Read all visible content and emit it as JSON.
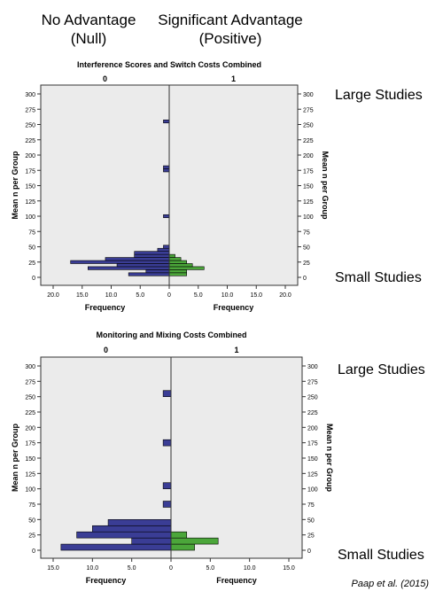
{
  "headers": {
    "null_line1": "No Advantage",
    "null_line2": "(Null)",
    "pos_line1": "Significant Advantage",
    "pos_line2": "(Positive)"
  },
  "side_labels": {
    "large": "Large Studies",
    "small": "Small Studies"
  },
  "citation": "Paap et al. (2015)",
  "colors": {
    "null_bar": "#3a3d95",
    "positive_bar": "#4ba63a",
    "plot_bg": "#ebebeb",
    "bar_outline": "#000000"
  },
  "chart_data": [
    {
      "type": "bar",
      "orientation": "horizontal-back-to-back",
      "title": "Interference Scores and Switch Costs Combined",
      "panel_labels": [
        "0",
        "1"
      ],
      "ylabel": "Mean n per Group",
      "xlabel": "Frequency",
      "ylim": [
        0,
        300
      ],
      "y_ticks": [
        "0",
        "25",
        "50",
        "75",
        "100",
        "125",
        "150",
        "175",
        "200",
        "225",
        "250",
        "275",
        "300"
      ],
      "x_max": 20,
      "x_ticks_left": [
        "20.0",
        "15.0",
        "10.0",
        "5.0",
        "0"
      ],
      "x_ticks_right": [
        "0",
        "5.0",
        "10.0",
        "15.0",
        "20.0"
      ],
      "bin_width": 5,
      "bins": [
        5,
        10,
        15,
        20,
        25,
        30,
        35,
        40,
        45,
        50,
        55,
        60,
        100,
        175,
        180,
        255
      ],
      "series": [
        {
          "values": [
            7,
            4,
            14,
            9,
            17,
            11,
            6,
            6,
            2,
            1,
            0,
            0,
            1,
            1,
            1,
            1
          ]
        },
        {
          "values": [
            3,
            3,
            6,
            4,
            3,
            2,
            1,
            0,
            0,
            0,
            0,
            0,
            0,
            0,
            0,
            0
          ]
        }
      ]
    },
    {
      "type": "bar",
      "orientation": "horizontal-back-to-back",
      "title": "Monitoring and Mixing Costs Combined",
      "panel_labels": [
        "0",
        "1"
      ],
      "ylabel": "Mean n per Group",
      "xlabel": "Frequency",
      "ylim": [
        0,
        300
      ],
      "y_ticks": [
        "0",
        "25",
        "50",
        "75",
        "100",
        "125",
        "150",
        "175",
        "200",
        "225",
        "250",
        "275",
        "300"
      ],
      "x_max": 15,
      "x_ticks_left": [
        "15.0",
        "10.0",
        "5.0",
        "0"
      ],
      "x_ticks_right": [
        "0",
        "5.0",
        "10.0",
        "15.0"
      ],
      "bin_width": 10,
      "bins": [
        5,
        15,
        25,
        35,
        45,
        75,
        105,
        175,
        255
      ],
      "series": [
        {
          "values": [
            14,
            5,
            12,
            10,
            8,
            1,
            1,
            1,
            1
          ]
        },
        {
          "values": [
            3,
            6,
            2,
            0,
            0,
            0,
            0,
            0,
            0
          ]
        }
      ]
    }
  ]
}
